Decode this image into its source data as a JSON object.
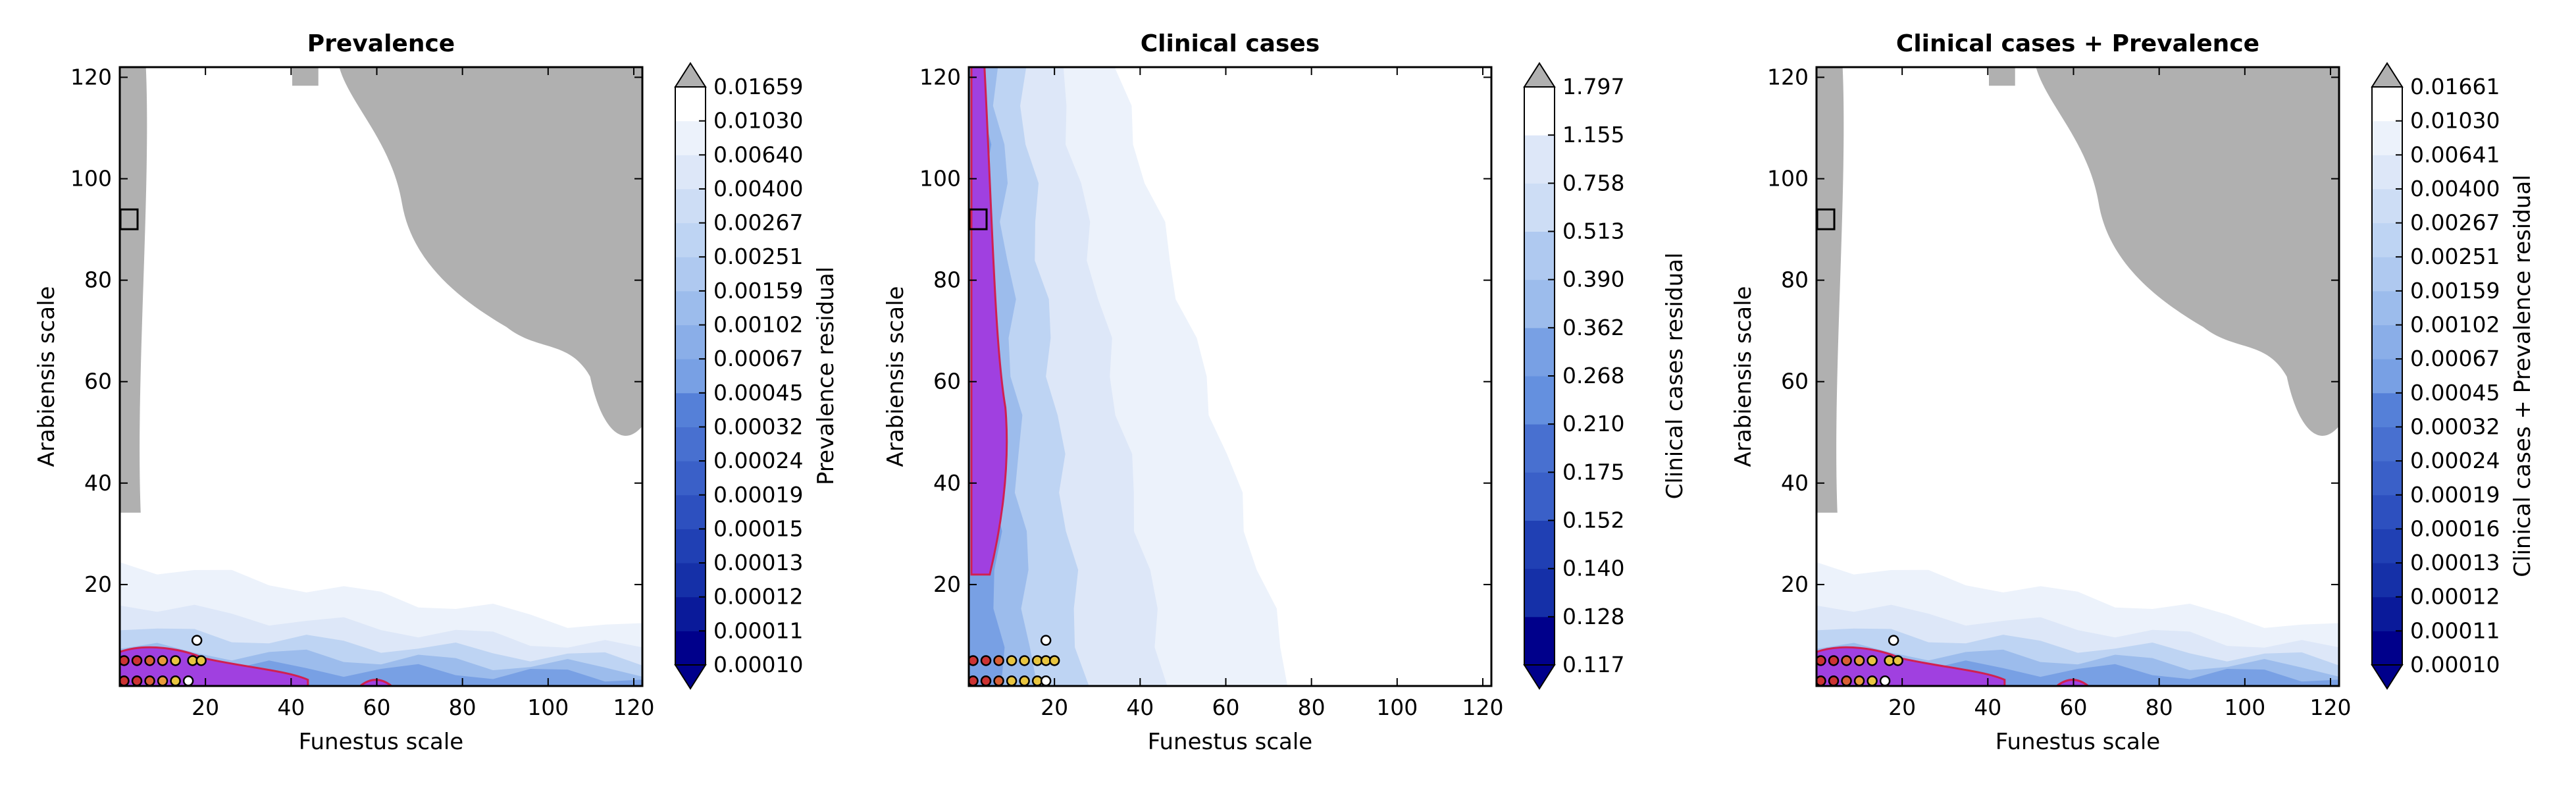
{
  "chart_data": [
    {
      "type": "heatmap",
      "title": "Prevalence",
      "xlabel": "Funestus scale",
      "ylabel": "Arabiensis scale",
      "xlim": [
        0,
        122
      ],
      "ylim": [
        0,
        122
      ],
      "xticks": [
        20,
        40,
        60,
        80,
        100,
        120
      ],
      "yticks": [
        20,
        40,
        60,
        80,
        100,
        120
      ],
      "colorbar_label": "Prevalence residual",
      "colorbar_levels": [
        "0.00010",
        "0.00011",
        "0.00012",
        "0.00013",
        "0.00015",
        "0.00019",
        "0.00024",
        "0.00032",
        "0.00045",
        "0.00067",
        "0.00102",
        "0.00159",
        "0.00251",
        "0.00267",
        "0.00400",
        "0.00640",
        "0.01030",
        "0.01659"
      ],
      "colorbar_extend": "both",
      "grey_region": "upper-right",
      "magenta_region": "bottom-left",
      "marker": {
        "x": 2,
        "y": 92
      },
      "points": [
        {
          "x": 1,
          "y": 5,
          "color": "#cc3333"
        },
        {
          "x": 4,
          "y": 5,
          "color": "#cc3333"
        },
        {
          "x": 7,
          "y": 5,
          "color": "#d85f35"
        },
        {
          "x": 10,
          "y": 5,
          "color": "#e89a3a"
        },
        {
          "x": 13,
          "y": 5,
          "color": "#e8c540"
        },
        {
          "x": 17,
          "y": 5,
          "color": "#e8c540"
        },
        {
          "x": 19,
          "y": 5,
          "color": "#e8c540"
        },
        {
          "x": 18,
          "y": 9,
          "color": "#ffffff"
        },
        {
          "x": 1,
          "y": 1,
          "color": "#cc3333"
        },
        {
          "x": 4,
          "y": 1,
          "color": "#cc3333"
        },
        {
          "x": 7,
          "y": 1,
          "color": "#d85f35"
        },
        {
          "x": 10,
          "y": 1,
          "color": "#e89a3a"
        },
        {
          "x": 13,
          "y": 1,
          "color": "#e8c540"
        },
        {
          "x": 16,
          "y": 1,
          "color": "#ffffff"
        }
      ]
    },
    {
      "type": "heatmap",
      "title": "Clinical cases",
      "xlabel": "Funestus scale",
      "ylabel": "Arabiensis scale",
      "xlim": [
        0,
        122
      ],
      "ylim": [
        0,
        122
      ],
      "xticks": [
        20,
        40,
        60,
        80,
        100,
        120
      ],
      "yticks": [
        20,
        40,
        60,
        80,
        100,
        120
      ],
      "colorbar_label": "Clinical cases residual",
      "colorbar_levels": [
        "0.117",
        "0.128",
        "0.140",
        "0.152",
        "0.175",
        "0.210",
        "0.268",
        "0.362",
        "0.390",
        "0.513",
        "0.758",
        "1.155",
        "1.797"
      ],
      "colorbar_extend": "both",
      "grey_region": "none",
      "magenta_region": "left-strip",
      "marker": {
        "x": 2,
        "y": 92
      },
      "points": [
        {
          "x": 1,
          "y": 5,
          "color": "#cc3333"
        },
        {
          "x": 4,
          "y": 5,
          "color": "#cc3333"
        },
        {
          "x": 7,
          "y": 5,
          "color": "#d85f35"
        },
        {
          "x": 10,
          "y": 5,
          "color": "#e8c540"
        },
        {
          "x": 13,
          "y": 5,
          "color": "#e8c540"
        },
        {
          "x": 16,
          "y": 5,
          "color": "#e8c540"
        },
        {
          "x": 18,
          "y": 5,
          "color": "#e8c540"
        },
        {
          "x": 20,
          "y": 5,
          "color": "#e8c540"
        },
        {
          "x": 18,
          "y": 9,
          "color": "#ffffff"
        },
        {
          "x": 1,
          "y": 1,
          "color": "#cc3333"
        },
        {
          "x": 4,
          "y": 1,
          "color": "#cc3333"
        },
        {
          "x": 7,
          "y": 1,
          "color": "#d85f35"
        },
        {
          "x": 10,
          "y": 1,
          "color": "#e8c540"
        },
        {
          "x": 13,
          "y": 1,
          "color": "#e8c540"
        },
        {
          "x": 16,
          "y": 1,
          "color": "#e8c540"
        },
        {
          "x": 18,
          "y": 1,
          "color": "#ffffff"
        }
      ]
    },
    {
      "type": "heatmap",
      "title": "Clinical cases + Prevalence",
      "xlabel": "Funestus scale",
      "ylabel": "Arabiensis scale",
      "xlim": [
        0,
        122
      ],
      "ylim": [
        0,
        122
      ],
      "xticks": [
        20,
        40,
        60,
        80,
        100,
        120
      ],
      "yticks": [
        20,
        40,
        60,
        80,
        100,
        120
      ],
      "colorbar_label": "Clinical cases + Prevalence residual",
      "colorbar_levels": [
        "0.00010",
        "0.00011",
        "0.00012",
        "0.00013",
        "0.00016",
        "0.00019",
        "0.00024",
        "0.00032",
        "0.00045",
        "0.00067",
        "0.00102",
        "0.00159",
        "0.00251",
        "0.00267",
        "0.00400",
        "0.00641",
        "0.01030",
        "0.01661"
      ],
      "colorbar_extend": "both",
      "grey_region": "upper-right",
      "magenta_region": "bottom-left",
      "marker": {
        "x": 2,
        "y": 92
      },
      "points": [
        {
          "x": 1,
          "y": 5,
          "color": "#cc3333"
        },
        {
          "x": 4,
          "y": 5,
          "color": "#cc3333"
        },
        {
          "x": 7,
          "y": 5,
          "color": "#d85f35"
        },
        {
          "x": 10,
          "y": 5,
          "color": "#e89a3a"
        },
        {
          "x": 13,
          "y": 5,
          "color": "#e8c540"
        },
        {
          "x": 17,
          "y": 5,
          "color": "#e8c540"
        },
        {
          "x": 19,
          "y": 5,
          "color": "#e8c540"
        },
        {
          "x": 18,
          "y": 9,
          "color": "#ffffff"
        },
        {
          "x": 1,
          "y": 1,
          "color": "#cc3333"
        },
        {
          "x": 4,
          "y": 1,
          "color": "#cc3333"
        },
        {
          "x": 7,
          "y": 1,
          "color": "#d85f35"
        },
        {
          "x": 10,
          "y": 1,
          "color": "#e89a3a"
        },
        {
          "x": 13,
          "y": 1,
          "color": "#e8c540"
        },
        {
          "x": 16,
          "y": 1,
          "color": "#ffffff"
        }
      ]
    }
  ],
  "colors": {
    "grey": "#b0b0b0",
    "magenta": "#a040e0",
    "contour_line": "#d02050",
    "colormap": [
      "#00008b",
      "#0a1a9a",
      "#1530a8",
      "#2040b4",
      "#2d50bf",
      "#3a60c8",
      "#4870d0",
      "#5580d8",
      "#6490df",
      "#78a0e4",
      "#8aaee8",
      "#9cbcec",
      "#afc9f0",
      "#bed4f3",
      "#cdddf5",
      "#dde7f8",
      "#ecf2fb",
      "#ffffff"
    ]
  }
}
